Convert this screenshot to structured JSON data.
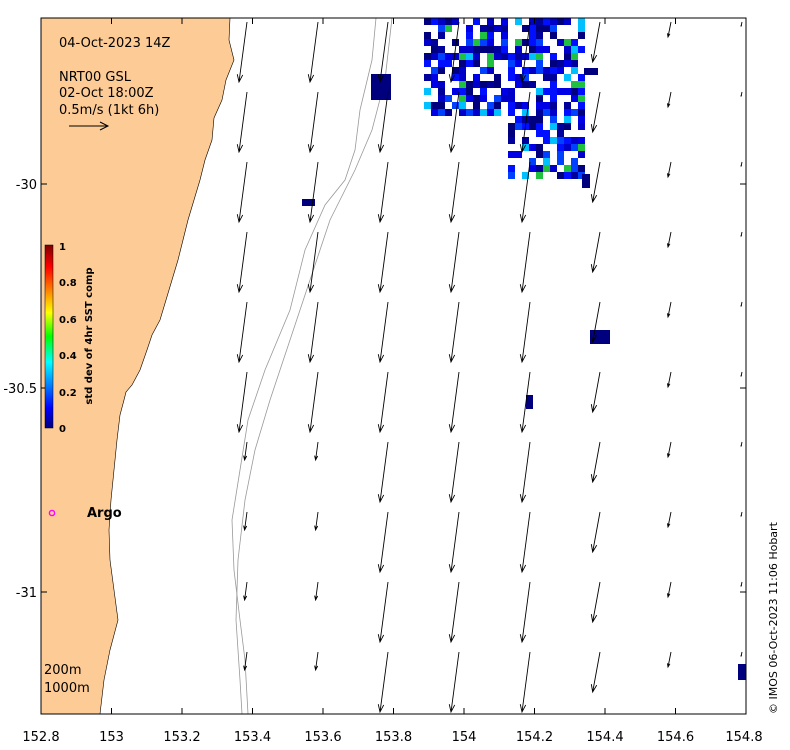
{
  "map": {
    "timestamp": "04-Oct-2023 14Z",
    "vector_source": "NRT00 GSL",
    "vector_time": "02-Oct 18:00Z",
    "scale_label": "0.5m/s (1kt 6h)",
    "credit": "© IMOS 06-Oct-2023 11:06 Hobart",
    "x_ticks": [
      "152.8",
      "153",
      "153.2",
      "153.4",
      "153.6",
      "153.8",
      "154",
      "154.2",
      "154.4",
      "154.6",
      "154.8"
    ],
    "y_ticks": [
      "-30",
      "-30.5",
      "-31"
    ],
    "contours": [
      "200m",
      "1000m"
    ],
    "argo_label": "Argo",
    "colors": {
      "land": "#fdcb96",
      "argo": "#ff00ff",
      "pixel_low": "#00007f"
    }
  },
  "colorbar": {
    "label": "std dev of 4hr SST comp",
    "ticks": [
      "0",
      "0.2",
      "0.4",
      "0.6",
      "0.8",
      "1"
    ],
    "range": [
      0,
      1
    ],
    "colormap": "jet"
  }
}
